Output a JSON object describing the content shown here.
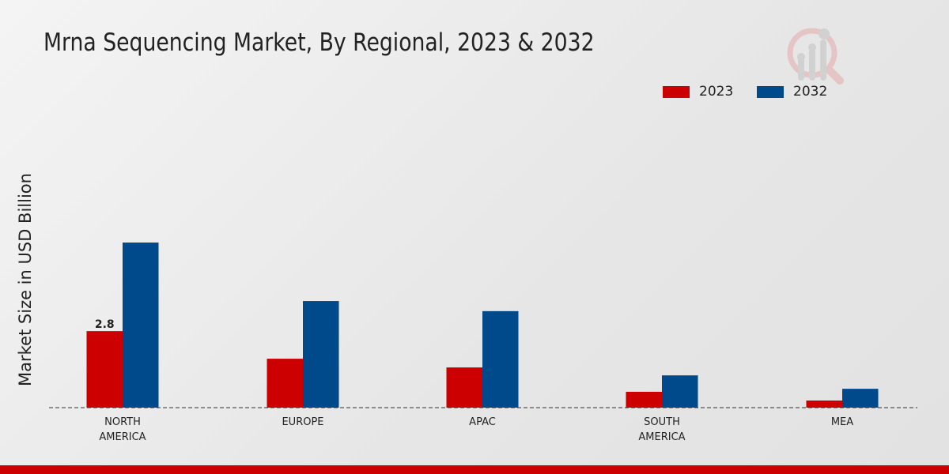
{
  "chart_data": {
    "type": "bar",
    "title": "Mrna Sequencing Market, By Regional, 2023 & 2032",
    "ylabel": "Market Size in USD Billion",
    "xlabel": "",
    "categories": [
      [
        "NORTH",
        "AMERICA"
      ],
      [
        "EUROPE"
      ],
      [
        "APAC"
      ],
      [
        "SOUTH",
        "AMERICA"
      ],
      [
        "MEA"
      ]
    ],
    "series": [
      {
        "name": "2023",
        "color": "#cc0000",
        "values": [
          2.8,
          1.79,
          1.47,
          0.58,
          0.26
        ],
        "data_labels": [
          "2.8",
          "",
          "",
          "",
          ""
        ]
      },
      {
        "name": "2032",
        "color": "#004a8c",
        "values": [
          6.04,
          3.9,
          3.53,
          1.18,
          0.69
        ],
        "data_labels": [
          "",
          "",
          "",
          "",
          ""
        ]
      }
    ],
    "grid": false,
    "legend": "top-right",
    "baseline_style": "dashed"
  },
  "logo": {
    "icon": "magnifier-bar-chart-logo"
  }
}
